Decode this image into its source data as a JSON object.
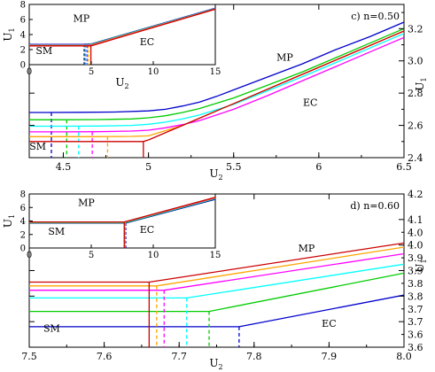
{
  "chart_data": [
    {
      "type": "line",
      "panel_label": "c) n=0.50",
      "xlabel": "U2",
      "ylabel": "U1",
      "xlim": [
        4.3,
        6.5
      ],
      "ylim": [
        2.4,
        3.35
      ],
      "x_ticks": [
        4.5,
        5,
        5.5,
        6,
        6.5
      ],
      "x_tick_labels": [
        "4.5",
        "5",
        "5.5",
        "6",
        "6.5"
      ],
      "y_ticks": [
        2.4,
        2.6,
        2.8,
        3.0,
        3.2
      ],
      "y_tick_labels": [
        "2.4",
        "2.6",
        "2.8",
        "3.0",
        "3.2"
      ],
      "y_axis_side": "right",
      "region_labels": [
        {
          "text": "MP",
          "x": 5.8,
          "y": 3.0
        },
        {
          "text": "EC",
          "x": 5.95,
          "y": 2.72
        },
        {
          "text": "SM",
          "x": 4.35,
          "y": 2.45
        }
      ],
      "series": [
        {
          "color": "#0000cc",
          "x": [
            4.3,
            4.4,
            4.6,
            4.8,
            5.0,
            5.1,
            5.2,
            5.3,
            5.4,
            5.5,
            5.7,
            5.9,
            6.1,
            6.3,
            6.5
          ],
          "y": [
            2.68,
            2.68,
            2.681,
            2.683,
            2.69,
            2.7,
            2.72,
            2.745,
            2.78,
            2.82,
            2.9,
            2.98,
            3.07,
            3.15,
            3.24
          ],
          "vline_x": 4.43,
          "vline_ybottom": 2.4
        },
        {
          "color": "#00cc00",
          "x": [
            4.3,
            4.5,
            4.7,
            4.9,
            5.0,
            5.1,
            5.2,
            5.3,
            5.5,
            5.7,
            5.9,
            6.1,
            6.3,
            6.5
          ],
          "y": [
            2.635,
            2.635,
            2.636,
            2.64,
            2.647,
            2.66,
            2.68,
            2.705,
            2.77,
            2.85,
            2.93,
            3.02,
            3.11,
            3.2
          ],
          "vline_x": 4.52,
          "vline_ybottom": 2.4
        },
        {
          "color": "#00ffff",
          "x": [
            4.3,
            4.5,
            4.7,
            4.9,
            5.0,
            5.1,
            5.2,
            5.3,
            5.5,
            5.7,
            5.9,
            6.1,
            6.3,
            6.5
          ],
          "y": [
            2.595,
            2.595,
            2.596,
            2.6,
            2.607,
            2.62,
            2.64,
            2.665,
            2.73,
            2.815,
            2.9,
            2.99,
            3.08,
            3.17
          ],
          "vline_x": 4.59,
          "vline_ybottom": 2.4
        },
        {
          "color": "#ff00ff",
          "x": [
            4.3,
            4.5,
            4.7,
            4.9,
            5.0,
            5.1,
            5.2,
            5.3,
            5.5,
            5.7,
            5.9,
            6.1,
            6.3,
            6.5
          ],
          "y": [
            2.56,
            2.56,
            2.561,
            2.565,
            2.57,
            2.585,
            2.605,
            2.63,
            2.7,
            2.785,
            2.875,
            2.965,
            3.055,
            3.145
          ],
          "vline_x": 4.67,
          "vline_ybottom": 2.4
        },
        {
          "color": "#ffa500",
          "x": [
            4.3,
            4.7,
            4.9,
            5.0,
            5.2,
            5.4,
            5.6,
            5.8,
            6.0,
            6.2,
            6.4,
            6.5
          ],
          "y": [
            2.53,
            2.53,
            2.532,
            2.535,
            2.6,
            2.69,
            2.78,
            2.87,
            2.96,
            3.05,
            3.14,
            3.185
          ],
          "vline_x": 4.76,
          "vline_ybottom": 2.4
        },
        {
          "color": "#cc0000",
          "x": [
            4.3,
            4.97,
            5.0,
            5.2,
            5.4,
            5.6,
            5.8,
            6.0,
            6.2,
            6.4,
            6.5
          ],
          "y": [
            2.5,
            2.5,
            2.51,
            2.6,
            2.69,
            2.78,
            2.87,
            2.96,
            3.05,
            3.14,
            3.185
          ],
          "vline_x": 4.97,
          "vline_ybottom": 2.4
        }
      ],
      "inset": {
        "xlim": [
          0,
          15
        ],
        "ylim": [
          0,
          8
        ],
        "x_ticks": [
          0,
          5,
          10,
          15
        ],
        "x_tick_labels": [
          "0",
          "5",
          "10",
          "15"
        ],
        "y_ticks": [
          0,
          2,
          4,
          6,
          8
        ],
        "y_tick_labels": [
          "0",
          "2",
          "4",
          "6",
          "8"
        ],
        "xlabel": "U2",
        "ylabel": "U1",
        "region_labels": [
          {
            "text": "MP",
            "x": 4.2,
            "y": 5.7
          },
          {
            "text": "EC",
            "x": 9.5,
            "y": 2.6
          },
          {
            "text": "SM",
            "x": 1.2,
            "y": 1.4
          }
        ],
        "series": [
          {
            "color": "#0000cc",
            "x": [
              0,
              4.3,
              5.0,
              15
            ],
            "y": [
              2.68,
              2.68,
              2.75,
              7.5
            ],
            "vline_x": 4.43
          },
          {
            "color": "#00cc00",
            "x": [
              0,
              4.5,
              5.0,
              15
            ],
            "y": [
              2.63,
              2.63,
              2.7,
              7.45
            ],
            "vline_x": 4.52
          },
          {
            "color": "#00ffff",
            "x": [
              0,
              4.6,
              5.0,
              15
            ],
            "y": [
              2.6,
              2.6,
              2.66,
              7.42
            ],
            "vline_x": 4.59
          },
          {
            "color": "#ff00ff",
            "x": [
              0,
              4.67,
              5.0,
              15
            ],
            "y": [
              2.56,
              2.56,
              2.62,
              7.4
            ],
            "vline_x": 4.67
          },
          {
            "color": "#ffa500",
            "x": [
              0,
              4.76,
              5.0,
              15
            ],
            "y": [
              2.53,
              2.53,
              2.58,
              7.38
            ],
            "vline_x": 4.76
          },
          {
            "color": "#cc0000",
            "x": [
              0,
              4.97,
              15
            ],
            "y": [
              2.5,
              2.5,
              7.36
            ],
            "vline_x": 4.97
          }
        ]
      }
    },
    {
      "type": "line",
      "panel_label": "d) n=0.60",
      "xlabel": "U2",
      "ylabel": "U1",
      "xlim": [
        7.5,
        8.0
      ],
      "ylim": [
        3.6,
        4.2
      ],
      "x_ticks": [
        7.5,
        7.6,
        7.7,
        7.8,
        7.9,
        8.0
      ],
      "x_tick_labels": [
        "7.5",
        "7.6",
        "7.7",
        "7.8",
        "7.9",
        "8.0"
      ],
      "y_ticks": [
        3.6,
        3.7,
        3.8,
        3.9,
        4.0,
        4.1,
        4.2
      ],
      "y_tick_labels": [
        "3.6",
        "3.7",
        "3.8",
        "3.9",
        "4.0",
        "4.1",
        "4.2"
      ],
      "y_ticks_minor_labels": [
        {
          "value": 3.65,
          "label": "3.6"
        },
        {
          "value": 3.75,
          "label": "3.7"
        },
        {
          "value": 3.85,
          "label": "3.8"
        },
        {
          "value": 3.95,
          "label": "3.9"
        },
        {
          "value": 4.05,
          "label": "4.0"
        }
      ],
      "y_axis_side": "right",
      "region_labels": [
        {
          "text": "MP",
          "x": 7.87,
          "y": 3.975
        },
        {
          "text": "EC",
          "x": 7.9,
          "y": 3.68
        },
        {
          "text": "SM",
          "x": 7.53,
          "y": 3.66
        }
      ],
      "series": [
        {
          "color": "#0000cc",
          "x": [
            7.5,
            7.78,
            8.0
          ],
          "y": [
            3.68,
            3.68,
            3.804
          ],
          "vline_x": 7.78,
          "vline_ybottom": 3.6
        },
        {
          "color": "#00cc00",
          "x": [
            7.5,
            7.74,
            8.0
          ],
          "y": [
            3.74,
            3.74,
            3.89
          ],
          "vline_x": 7.74,
          "vline_ybottom": 3.6
        },
        {
          "color": "#00ffff",
          "x": [
            7.5,
            7.71,
            8.0
          ],
          "y": [
            3.793,
            3.793,
            3.925
          ],
          "vline_x": 7.71,
          "vline_ybottom": 3.6
        },
        {
          "color": "#ff00ff",
          "x": [
            7.5,
            7.68,
            8.0
          ],
          "y": [
            3.823,
            3.823,
            3.966
          ],
          "vline_x": 7.68,
          "vline_ybottom": 3.6
        },
        {
          "color": "#ffa500",
          "x": [
            7.5,
            7.67,
            8.0
          ],
          "y": [
            3.84,
            3.84,
            3.992
          ],
          "vline_x": 7.67,
          "vline_ybottom": 3.6
        },
        {
          "color": "#cc0000",
          "x": [
            7.5,
            7.66,
            8.0
          ],
          "y": [
            3.855,
            3.855,
            4.008
          ],
          "vline_x": 7.66,
          "vline_ybottom": 3.6
        }
      ],
      "inset": {
        "xlim": [
          0,
          15
        ],
        "ylim": [
          0,
          8
        ],
        "x_ticks": [
          0,
          5,
          10,
          15
        ],
        "x_tick_labels": [
          "0",
          "5",
          "10",
          "15"
        ],
        "y_ticks": [
          0,
          2,
          4,
          6,
          8
        ],
        "y_tick_labels": [
          "0",
          "2",
          "4",
          "6",
          "8"
        ],
        "xlabel": "",
        "ylabel": "U1",
        "region_labels": [
          {
            "text": "MP",
            "x": 4.6,
            "y": 6.2
          },
          {
            "text": "EC",
            "x": 9.5,
            "y": 2.2
          },
          {
            "text": "SM",
            "x": 2.2,
            "y": 2.0
          }
        ],
        "series": [
          {
            "color": "#0000cc",
            "x": [
              0,
              7.78,
              15
            ],
            "y": [
              3.68,
              3.68,
              7.2
            ],
            "vline_x": 7.78
          },
          {
            "color": "#00cc00",
            "x": [
              0,
              7.74,
              15
            ],
            "y": [
              3.74,
              3.74,
              7.3
            ],
            "vline_x": 7.74
          },
          {
            "color": "#00ffff",
            "x": [
              0,
              7.71,
              15
            ],
            "y": [
              3.79,
              3.79,
              7.35
            ],
            "vline_x": 7.71
          },
          {
            "color": "#ff00ff",
            "x": [
              0,
              7.68,
              15
            ],
            "y": [
              3.82,
              3.82,
              7.4
            ],
            "vline_x": 7.68
          },
          {
            "color": "#ffa500",
            "x": [
              0,
              7.67,
              15
            ],
            "y": [
              3.84,
              3.84,
              7.45
            ],
            "vline_x": 7.67
          },
          {
            "color": "#cc0000",
            "x": [
              0,
              7.66,
              15
            ],
            "y": [
              3.855,
              3.855,
              7.5
            ],
            "vline_x": 7.66
          }
        ]
      }
    }
  ]
}
